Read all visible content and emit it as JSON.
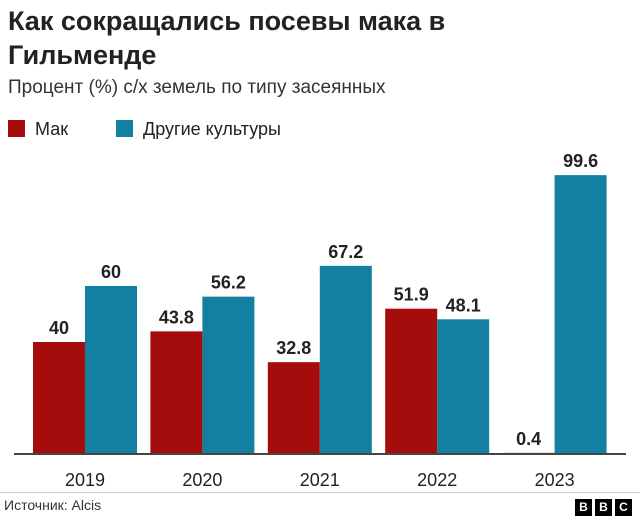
{
  "title": "Как сокращались посевы мака в Гильменде",
  "subtitle": "Процент (%) с/х земель по типу засеянных",
  "source": "Источник: Alcis",
  "logo_letters": [
    "B",
    "B",
    "C"
  ],
  "colors": {
    "poppy": "#a50d0d",
    "other": "#1380a1",
    "baseline": "#444444",
    "text": "#222222"
  },
  "chart_data": {
    "type": "bar",
    "title": "Как сокращались посевы мака в Гильменде",
    "subtitle": "Процент (%) с/х земель по типу засеянных",
    "xlabel": "",
    "ylabel": "",
    "ylim": [
      0,
      100
    ],
    "grid": false,
    "legend": "top-left",
    "categories": [
      "2019",
      "2020",
      "2021",
      "2022",
      "2023"
    ],
    "series": [
      {
        "name": "Мак",
        "color": "#a50d0d",
        "values": [
          40,
          43.8,
          32.8,
          51.9,
          0.4
        ],
        "labels": [
          "40",
          "43.8",
          "32.8",
          "51.9",
          "0.4"
        ]
      },
      {
        "name": "Другие культуры",
        "color": "#1380a1",
        "values": [
          60,
          56.2,
          67.2,
          48.1,
          99.6
        ],
        "labels": [
          "60",
          "56.2",
          "67.2",
          "48.1",
          "99.6"
        ]
      }
    ]
  }
}
